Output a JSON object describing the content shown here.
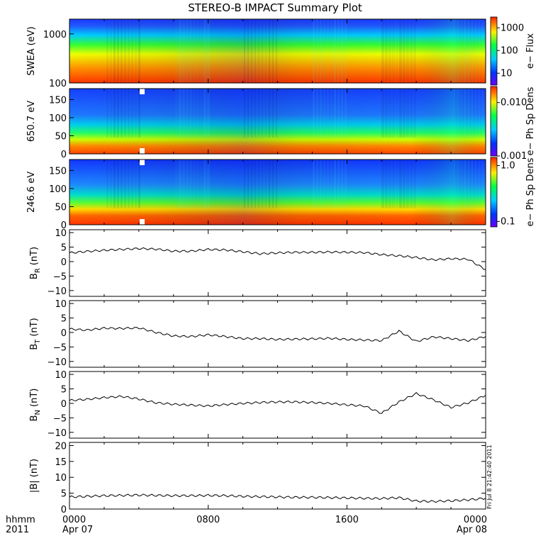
{
  "title": "STEREO-B IMPACT Summary Plot",
  "time_axis": {
    "row1": "hhmm",
    "row2": "2011",
    "ticks": [
      {
        "time": "0000",
        "date": "Apr 07"
      },
      {
        "time": "0800",
        "date": ""
      },
      {
        "time": "1600",
        "date": ""
      },
      {
        "time": "0000",
        "date": "Apr 08"
      }
    ]
  },
  "timestamp": "Fri Jul  8 21:42:40 2011",
  "colors": {
    "trace": "#000000",
    "frame": "#000000",
    "gap": "#ffffff"
  },
  "chart_data": [
    {
      "type": "heatmap",
      "ylabel": "SWEA (eV)",
      "y_scale": "log",
      "ylim": [
        100,
        2000
      ],
      "yticks": [
        "100",
        "1000"
      ],
      "colorbar": {
        "label": "e− Flux",
        "scale": "log",
        "ticks": [
          "10",
          "100",
          "1000"
        ],
        "range": [
          3,
          3000
        ]
      },
      "description_values": {
        "low_energy_flux": "high (red)",
        "high_energy_flux": "low (blue)"
      }
    },
    {
      "type": "heatmap",
      "ylabel": "650.7 eV",
      "ylim": [
        0,
        180
      ],
      "yticks": [
        "0",
        "50",
        "100",
        "150"
      ],
      "colorbar": {
        "label": "e− Ph Sp Dens",
        "scale": "log",
        "ticks": [
          "0.001",
          "0.010"
        ],
        "range": [
          0.001,
          0.02
        ]
      }
    },
    {
      "type": "heatmap",
      "ylabel": "246.6 eV",
      "ylim": [
        0,
        180
      ],
      "yticks": [
        "0",
        "50",
        "100",
        "150"
      ],
      "colorbar": {
        "label": "e− Ph Sp Dens",
        "scale": "log",
        "ticks": [
          "0.1",
          "1.0"
        ],
        "range": [
          0.08,
          1.4
        ]
      }
    },
    {
      "type": "line",
      "ylabel": "B",
      "ylabel_sub": "R",
      "ylabel_unit": "(nT)",
      "ylim": [
        -12,
        11
      ],
      "yticks": [
        "10",
        "5",
        "0",
        "−5",
        "−10"
      ],
      "x": [
        0,
        1,
        2,
        3,
        4,
        5,
        6,
        7,
        8,
        9,
        10,
        11,
        12,
        13,
        14,
        15,
        16,
        17,
        18,
        19,
        20,
        21,
        22,
        23,
        24
      ],
      "y": [
        3,
        3.5,
        3.9,
        4.2,
        4.5,
        4.3,
        3.6,
        3.6,
        4.2,
        4.0,
        3.4,
        2.7,
        3.0,
        3.2,
        3.2,
        3.3,
        3.2,
        3.1,
        2.4,
        2.0,
        1.4,
        0.6,
        1.0,
        0.8,
        -2.8
      ]
    },
    {
      "type": "line",
      "ylabel": "B",
      "ylabel_sub": "T",
      "ylabel_unit": "(nT)",
      "ylim": [
        -12,
        11
      ],
      "yticks": [
        "10",
        "5",
        "0",
        "−5",
        "−10"
      ],
      "x": [
        0,
        1,
        2,
        3,
        4,
        5,
        6,
        7,
        8,
        9,
        10,
        11,
        12,
        13,
        14,
        15,
        16,
        17,
        18,
        19,
        20,
        21,
        22,
        23,
        24
      ],
      "y": [
        1.2,
        0.8,
        1.5,
        1.4,
        1.6,
        0,
        -1.2,
        -1.4,
        -0.8,
        -1.4,
        -2.1,
        -2.1,
        -2.4,
        -2.3,
        -2.2,
        -2.0,
        -2.4,
        -2.6,
        -2.8,
        0.5,
        -3.1,
        -1.5,
        -2.1,
        -2.8,
        -1.4
      ]
    },
    {
      "type": "line",
      "ylabel": "B",
      "ylabel_sub": "N",
      "ylabel_unit": "(nT)",
      "ylim": [
        -12,
        11
      ],
      "yticks": [
        "10",
        "5",
        "0",
        "−5",
        "−10"
      ],
      "x": [
        0,
        1,
        2,
        3,
        4,
        5,
        6,
        7,
        8,
        9,
        10,
        11,
        12,
        13,
        14,
        15,
        16,
        17,
        18,
        19,
        20,
        21,
        22,
        23,
        24
      ],
      "y": [
        1.0,
        1.4,
        2.0,
        2.4,
        1.5,
        0.2,
        -0.3,
        -0.6,
        -0.9,
        -0.4,
        0,
        0.3,
        0.5,
        0.5,
        0.3,
        0,
        -0.5,
        -0.9,
        -3.4,
        0.5,
        3.4,
        1.2,
        -1.4,
        0.2,
        2.8
      ]
    },
    {
      "type": "line",
      "ylabel": "|B| (nT)",
      "ylim": [
        0,
        21
      ],
      "yticks": [
        "20",
        "15",
        "10",
        "5",
        "0"
      ],
      "x": [
        0,
        1,
        2,
        3,
        4,
        5,
        6,
        7,
        8,
        9,
        10,
        11,
        12,
        13,
        14,
        15,
        16,
        17,
        18,
        19,
        20,
        21,
        22,
        23,
        24
      ],
      "y": [
        3.8,
        4.0,
        4.2,
        4.3,
        4.4,
        4.3,
        4.2,
        4.2,
        4.3,
        4.2,
        4.0,
        3.9,
        3.8,
        3.7,
        3.7,
        3.6,
        3.5,
        3.4,
        3.3,
        3.6,
        2.5,
        2.4,
        2.6,
        2.9,
        3.4
      ]
    }
  ]
}
